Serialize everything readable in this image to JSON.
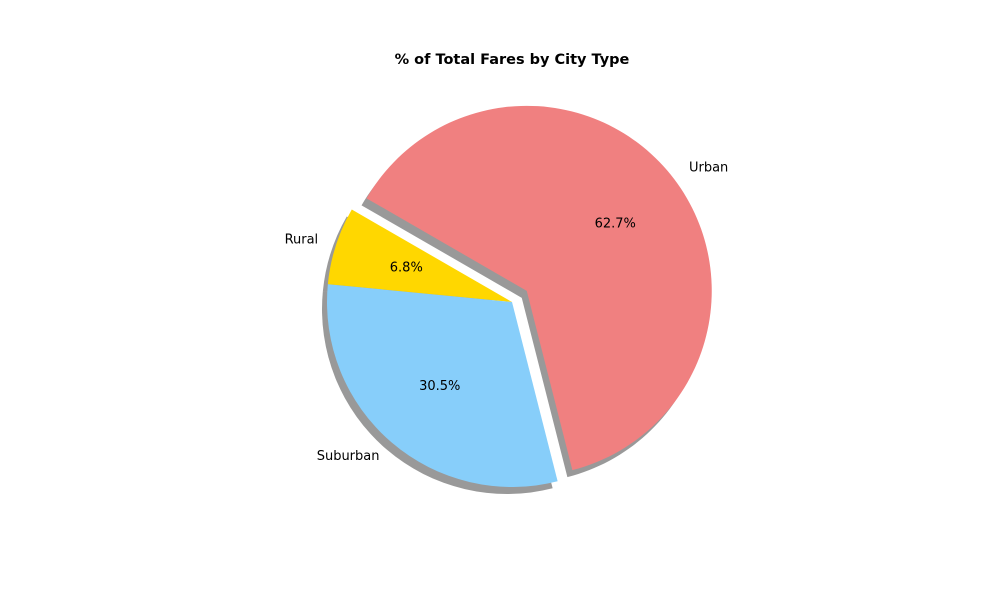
{
  "chart_data": {
    "type": "pie",
    "title": "% of Total Fares by City Type",
    "categories": [
      "Rural",
      "Suburban",
      "Urban"
    ],
    "values": [
      6.8,
      30.5,
      62.7
    ],
    "percent_labels": [
      "6.8%",
      "30.5%",
      "62.7%"
    ],
    "colors": [
      "#FFD700",
      "#87CEFA",
      "#F08080"
    ],
    "explode": [
      0,
      0,
      0.1
    ],
    "shadow": true,
    "start_angle_deg": 150,
    "legend": false
  }
}
